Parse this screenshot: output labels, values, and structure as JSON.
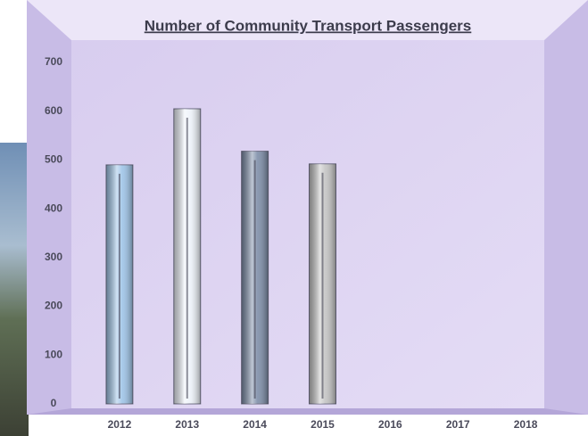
{
  "chart_data": {
    "type": "bar",
    "title": "Number of Community Transport Passengers",
    "categories": [
      "2012",
      "2013",
      "2014",
      "2015",
      "2016",
      "2017",
      "2018"
    ],
    "values": [
      490,
      605,
      518,
      492,
      null,
      null,
      null
    ],
    "colors": [
      "#9ec4e8",
      "#eef3fa",
      "#7d8da8",
      "#c4c4c4"
    ],
    "ylim": [
      0,
      700
    ],
    "yticks": [
      0,
      100,
      200,
      300,
      400,
      500,
      600,
      700
    ],
    "grid": false
  }
}
